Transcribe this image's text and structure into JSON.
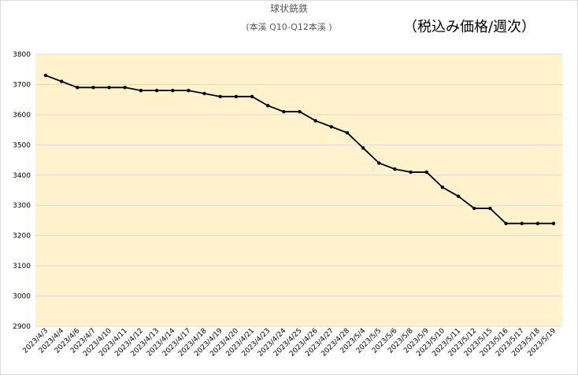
{
  "chart_data": {
    "type": "line",
    "title": "球状銑鉄",
    "subtitle": "(本溪 Q10-Q12本溪 )",
    "annotation": "（税込み価格/週次）",
    "categories": [
      "2023/4/3",
      "2023/4/4",
      "2023/4/6",
      "2023/4/7",
      "2023/4/10",
      "2023/4/11",
      "2023/4/12",
      "2023/4/13",
      "2023/4/14",
      "2023/4/17",
      "2023/4/18",
      "2023/4/19",
      "2023/4/20",
      "2023/4/21",
      "2023/4/23",
      "2023/4/24",
      "2023/4/25",
      "2023/4/26",
      "2023/4/27",
      "2023/4/28",
      "2023/5/4",
      "2023/5/5",
      "2023/5/6",
      "2023/5/8",
      "2023/5/9",
      "2023/5/10",
      "2023/5/11",
      "2023/5/12",
      "2023/5/15",
      "2023/5/16",
      "2023/5/17",
      "2023/5/18",
      "2023/5/19"
    ],
    "values": [
      3730,
      3710,
      3690,
      3690,
      3690,
      3690,
      3680,
      3680,
      3680,
      3680,
      3670,
      3660,
      3660,
      3660,
      3630,
      3610,
      3610,
      3580,
      3560,
      3540,
      3490,
      3440,
      3420,
      3410,
      3410,
      3360,
      3330,
      3290,
      3290,
      3240,
      3240,
      3240,
      3240
    ],
    "color": "#000000",
    "plot_background": "#fff2cc",
    "ylim": [
      2900,
      3800
    ],
    "yticks": [
      2900,
      3000,
      3100,
      3200,
      3300,
      3400,
      3500,
      3600,
      3700,
      3800
    ],
    "grid": true
  }
}
